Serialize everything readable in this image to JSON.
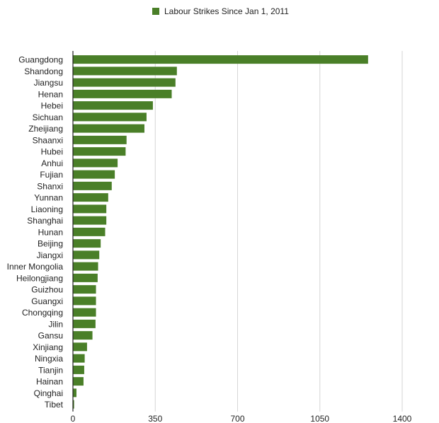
{
  "chart_data": {
    "type": "bar",
    "orientation": "horizontal",
    "series": [
      {
        "name": "Labour Strikes Since Jan 1, 2011",
        "color": "#4a7f28",
        "values": [
          1255,
          442,
          436,
          420,
          340,
          313,
          304,
          228,
          224,
          190,
          178,
          165,
          150,
          142,
          142,
          137,
          118,
          112,
          107,
          105,
          98,
          98,
          98,
          96,
          83,
          60,
          50,
          48,
          45,
          15,
          5
        ]
      }
    ],
    "categories": [
      "Guangdong",
      "Shandong",
      "Jiangsu",
      "Henan",
      "Hebei",
      "Sichuan",
      "Zheijiang",
      "Shaanxi",
      "Hubei",
      "Anhui",
      "Fujian",
      "Shanxi",
      "Yunnan",
      "Liaoning",
      "Shanghai",
      "Hunan",
      "Beijing",
      "Jiangxi",
      "Inner Mongolia",
      "Heilongjiang",
      "Guizhou",
      "Guangxi",
      "Chongqing",
      "Jilin",
      "Gansu",
      "Xinjiang",
      "Ningxia",
      "Tianjin",
      "Hainan",
      "Qinghai",
      "Tibet"
    ],
    "xlim": [
      0,
      1400
    ],
    "xticks": [
      "0",
      "350",
      "700",
      "1050",
      "1400"
    ],
    "xtick_values": [
      0,
      350,
      700,
      1050,
      1400
    ],
    "grid": true,
    "legend_position": "top"
  }
}
